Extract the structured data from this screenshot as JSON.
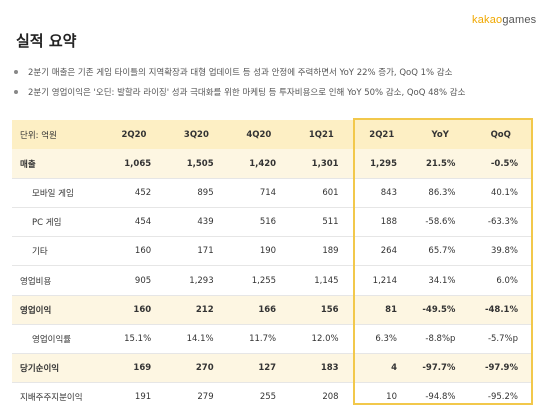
{
  "logo": {
    "brand": "kakao",
    "suffix": "games"
  },
  "title": "실적 요약",
  "bullets": [
    "2분기 매출은 기존 게임 타이틀의 지역확장과 대형 업데이트 등 성과 안정에 주력하면서 YoY 22% 증가, QoQ 1% 감소",
    "2분기 영업이익은 '오딘: 발할라 라이징' 성과 극대화를 위한 마케팅 등 투자비용으로 인해 YoY 50% 감소, QoQ 48% 감소"
  ],
  "table": {
    "headers": [
      "단위: 억원",
      "2Q20",
      "3Q20",
      "4Q20",
      "1Q21",
      "2Q21",
      "YoY",
      "QoQ"
    ],
    "rows": [
      {
        "label": "매출",
        "values": [
          "1,065",
          "1,505",
          "1,420",
          "1,301",
          "1,295",
          "21.5%",
          "-0.5%"
        ]
      },
      {
        "label": "모바일 게임",
        "values": [
          "452",
          "895",
          "714",
          "601",
          "843",
          "86.3%",
          "40.1%"
        ]
      },
      {
        "label": "PC 게임",
        "values": [
          "454",
          "439",
          "516",
          "511",
          "188",
          "-58.6%",
          "-63.3%"
        ]
      },
      {
        "label": "기타",
        "values": [
          "160",
          "171",
          "190",
          "189",
          "264",
          "65.7%",
          "39.8%"
        ]
      },
      {
        "label": "영업비용",
        "values": [
          "905",
          "1,293",
          "1,255",
          "1,145",
          "1,214",
          "34.1%",
          "6.0%"
        ]
      },
      {
        "label": "영업이익",
        "values": [
          "160",
          "212",
          "166",
          "156",
          "81",
          "-49.5%",
          "-48.1%"
        ]
      },
      {
        "label": "영업이익률",
        "values": [
          "15.1%",
          "14.1%",
          "11.7%",
          "12.0%",
          "6.3%",
          "-8.8%p",
          "-5.7%p"
        ]
      },
      {
        "label": "당기순이익",
        "values": [
          "169",
          "270",
          "127",
          "183",
          "4",
          "-97.7%",
          "-97.9%"
        ]
      },
      {
        "label": "지배주주지분이익",
        "values": [
          "191",
          "279",
          "255",
          "208",
          "10",
          "-94.8%",
          "-95.2%"
        ]
      }
    ]
  },
  "colors": {
    "accent": "#f2c84b",
    "header_bg": "#fdefc4",
    "shade_bg": "#fdf6e2",
    "logo_brand": "#f0a800"
  }
}
